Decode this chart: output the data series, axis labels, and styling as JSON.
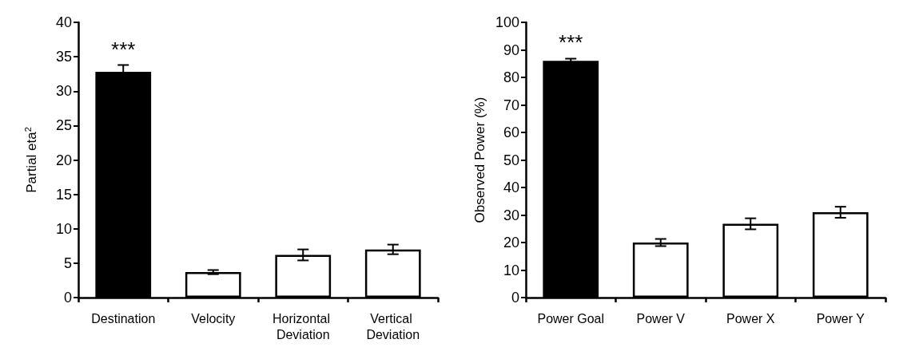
{
  "chart_data": [
    {
      "type": "bar",
      "ylabel": "Partial eta$^{2}$",
      "categories": [
        "Destination",
        "Velocity",
        "Horizontal Deviation",
        "Vertical Deviation"
      ],
      "values": [
        32.8,
        3.7,
        6.2,
        7.0
      ],
      "errors": [
        1.0,
        0.3,
        0.8,
        0.7
      ],
      "colors": [
        "#000000",
        "#ffffff",
        "#ffffff",
        "#ffffff"
      ],
      "ylim": [
        0,
        40
      ],
      "yticks": [
        0,
        5,
        10,
        15,
        20,
        25,
        30,
        35,
        40
      ],
      "grid": false,
      "annotations": [
        {
          "text": "***",
          "x": "Destination",
          "y": 34
        }
      ]
    },
    {
      "type": "bar",
      "ylabel": "Observed Power (%)",
      "categories": [
        "Power Goal",
        "Power V",
        "Power X",
        "Power Y"
      ],
      "values": [
        86,
        20,
        26.8,
        31
      ],
      "errors": [
        0.8,
        1.3,
        2,
        2
      ],
      "colors": [
        "#000000",
        "#ffffff",
        "#ffffff",
        "#ffffff"
      ],
      "ylim": [
        0,
        100
      ],
      "yticks": [
        0,
        10,
        20,
        30,
        40,
        50,
        60,
        70,
        80,
        90,
        100
      ],
      "grid": false,
      "annotations": [
        {
          "text": "***",
          "x": "Power Goal",
          "y": 87.5
        }
      ]
    }
  ]
}
